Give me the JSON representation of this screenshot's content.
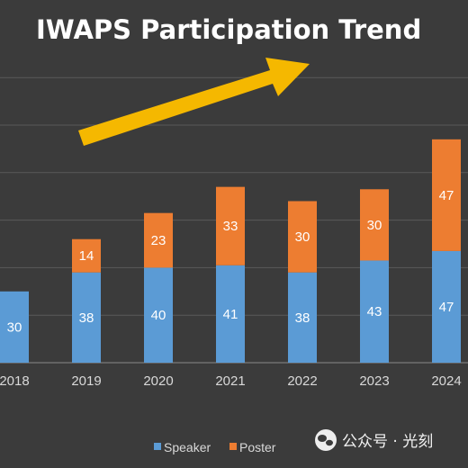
{
  "chart_data": {
    "type": "bar",
    "stacked": true,
    "title": "IWAPS Participation Trend",
    "categories": [
      "2018",
      "2019",
      "2020",
      "2021",
      "2022",
      "2023",
      "2024"
    ],
    "series": [
      {
        "name": "Speaker",
        "values": [
          30,
          38,
          40,
          41,
          38,
          43,
          47
        ]
      },
      {
        "name": "Poster",
        "values": [
          0,
          14,
          23,
          33,
          30,
          30,
          47
        ]
      }
    ],
    "ylim": [
      0,
      130
    ],
    "grid": true,
    "legend_position": "bottom",
    "colors": {
      "Speaker": "#5b9bd5",
      "Poster": "#ed7d31"
    },
    "annotation_arrow_color": "#f5b800"
  },
  "watermark": {
    "text": "公众号 · 光刻"
  },
  "colors": {
    "background": "#3b3b3b",
    "grid": "#5a5a5a",
    "text": "#d9d9d9"
  }
}
